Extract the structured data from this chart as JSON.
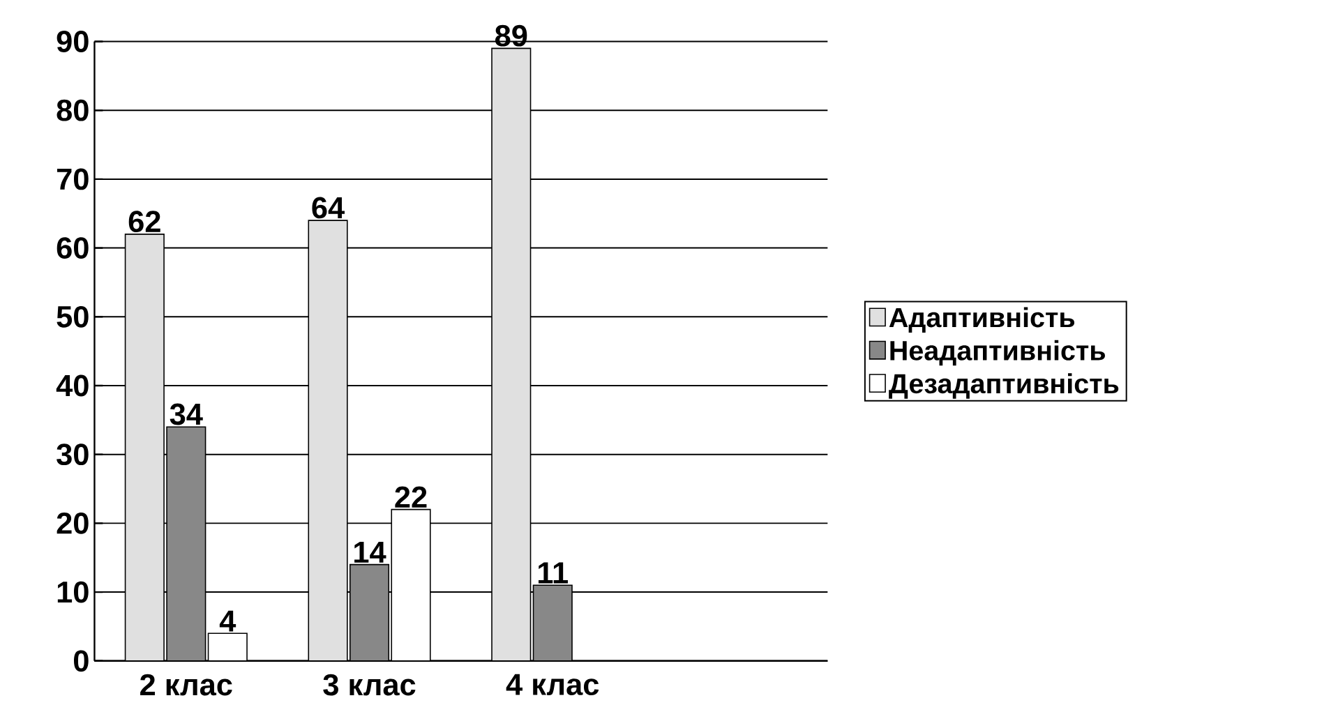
{
  "chart_data": {
    "type": "bar",
    "categories": [
      "2 клас",
      "3 клас",
      "4 клас",
      null
    ],
    "series": [
      {
        "name": "Адаптивність",
        "color": "#e0e0e0",
        "values": [
          62,
          64,
          89,
          null
        ]
      },
      {
        "name": "Неадаптивність",
        "color": "#888888",
        "values": [
          34,
          14,
          11,
          null
        ]
      },
      {
        "name": "Дезадаптивність",
        "color": "#ffffff",
        "values": [
          4,
          22,
          null,
          null
        ]
      }
    ],
    "ylim": [
      0,
      90
    ],
    "yticks": [
      0,
      10,
      20,
      30,
      40,
      50,
      60,
      70,
      80,
      90
    ],
    "grid": "y",
    "legend": "right",
    "data_labels": true
  }
}
